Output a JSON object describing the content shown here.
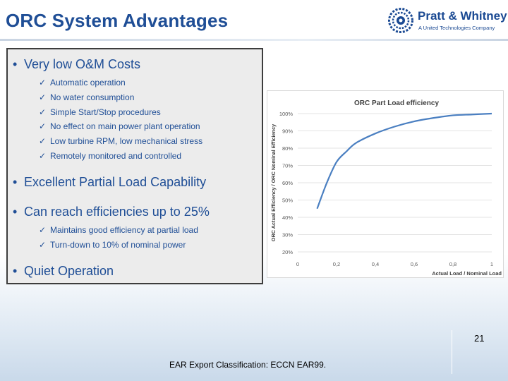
{
  "slide": {
    "title": "ORC System Advantages",
    "brand": {
      "name": "Pratt & Whitney",
      "tagline": "A United Technologies Company",
      "logo_icon": "eagle-emblem-icon"
    },
    "bullets": [
      {
        "text": "Very low O&M Costs",
        "items": [
          "Automatic operation",
          "No water consumption",
          "Simple Start/Stop procedures",
          "No effect on main power plant operation",
          "Low turbine RPM, low mechanical stress",
          "Remotely monitored and controlled"
        ]
      },
      {
        "text": "Excellent Partial Load Capability",
        "items": []
      },
      {
        "text": "Can reach efficiencies up to 25%",
        "items": [
          "Maintains good efficiency at partial load",
          "Turn-down to 10% of nominal power"
        ]
      },
      {
        "text": "Quiet Operation",
        "items": []
      }
    ],
    "bullet_glyph": "•",
    "check_glyph": "✓",
    "footer": "EAR Export Classification: ECCN EAR99.",
    "page_number": "21"
  },
  "chart_data": {
    "type": "line",
    "title": "ORC Part Load efficiency",
    "xlabel": "Actual Load  / Nominal Load",
    "ylabel": "ORC Actual Efficiency / ORC Nominal Efficiency",
    "x_ticks": [
      "0",
      "0,2",
      "0,4",
      "0,6",
      "0,8",
      "1"
    ],
    "y_ticks": [
      "20%",
      "30%",
      "40%",
      "50%",
      "60%",
      "70%",
      "80%",
      "90%",
      "100%"
    ],
    "xlim": [
      0,
      1
    ],
    "ylim": [
      0.2,
      1.0
    ],
    "grid": true,
    "color": "#4a7fc1",
    "series": [
      {
        "x": [
          0.1,
          0.15,
          0.2,
          0.25,
          0.3,
          0.4,
          0.5,
          0.6,
          0.7,
          0.8,
          0.9,
          1.0
        ],
        "values": [
          0.45,
          0.6,
          0.72,
          0.78,
          0.83,
          0.885,
          0.925,
          0.955,
          0.975,
          0.99,
          0.995,
          1.0
        ]
      }
    ]
  }
}
